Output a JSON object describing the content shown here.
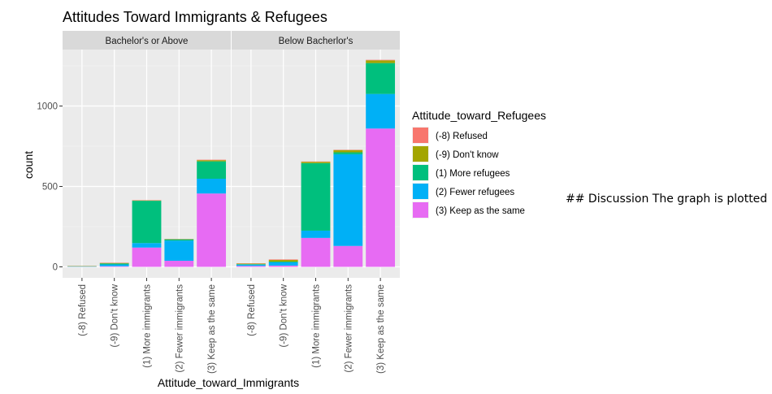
{
  "chart_data": {
    "type": "bar",
    "stacked": true,
    "title": "Attitudes Toward Immigrants & Refugees",
    "xlabel": "Attitude_toward_Immigrants",
    "ylabel": "count",
    "ylim": [
      0,
      1300
    ],
    "yticks": [
      0,
      500,
      1000
    ],
    "grid": true,
    "legend_title": "Attitude_toward_Refugees",
    "legend_position": "right",
    "categories": [
      "(-8) Refused",
      "(-9) Don't know",
      "(1) More immigrants",
      "(2) Fewer immigrants",
      "(3) Keep as the same"
    ],
    "panels": [
      {
        "label": "Bachelor's or Above",
        "series": [
          {
            "name": "(-8) Refused",
            "color": "#F8766D",
            "values": [
              1,
              2,
              2,
              1,
              3
            ]
          },
          {
            "name": "(-9) Don't know",
            "color": "#A3A500",
            "values": [
              1,
              3,
              2,
              2,
              7
            ]
          },
          {
            "name": "(1) More refugees",
            "color": "#00BF7D",
            "values": [
              2,
              6,
              263,
              8,
              108
            ]
          },
          {
            "name": "(2) Fewer refugees",
            "color": "#00B0F6",
            "values": [
              1,
              11,
              28,
              125,
              92
            ]
          },
          {
            "name": "(3) Keep as the same",
            "color": "#E76BF3",
            "values": [
              1,
              4,
              120,
              38,
              456
            ]
          }
        ]
      },
      {
        "label": "Below Bacherlor's",
        "series": [
          {
            "name": "(-8) Refused",
            "color": "#F8766D",
            "values": [
              2,
              3,
              2,
              2,
              3
            ]
          },
          {
            "name": "(-9) Don't know",
            "color": "#A3A500",
            "values": [
              3,
              10,
              8,
              14,
              17
            ]
          },
          {
            "name": "(1) More refugees",
            "color": "#00BF7D",
            "values": [
              3,
              5,
              420,
              12,
              192
            ]
          },
          {
            "name": "(2) Fewer refugees",
            "color": "#00B0F6",
            "values": [
              8,
              20,
              45,
              570,
              215
            ]
          },
          {
            "name": "(3) Keep as the same",
            "color": "#E76BF3",
            "values": [
              6,
              8,
              180,
              130,
              860
            ]
          }
        ]
      }
    ]
  },
  "side_note": "## Discussion The graph is plotted"
}
